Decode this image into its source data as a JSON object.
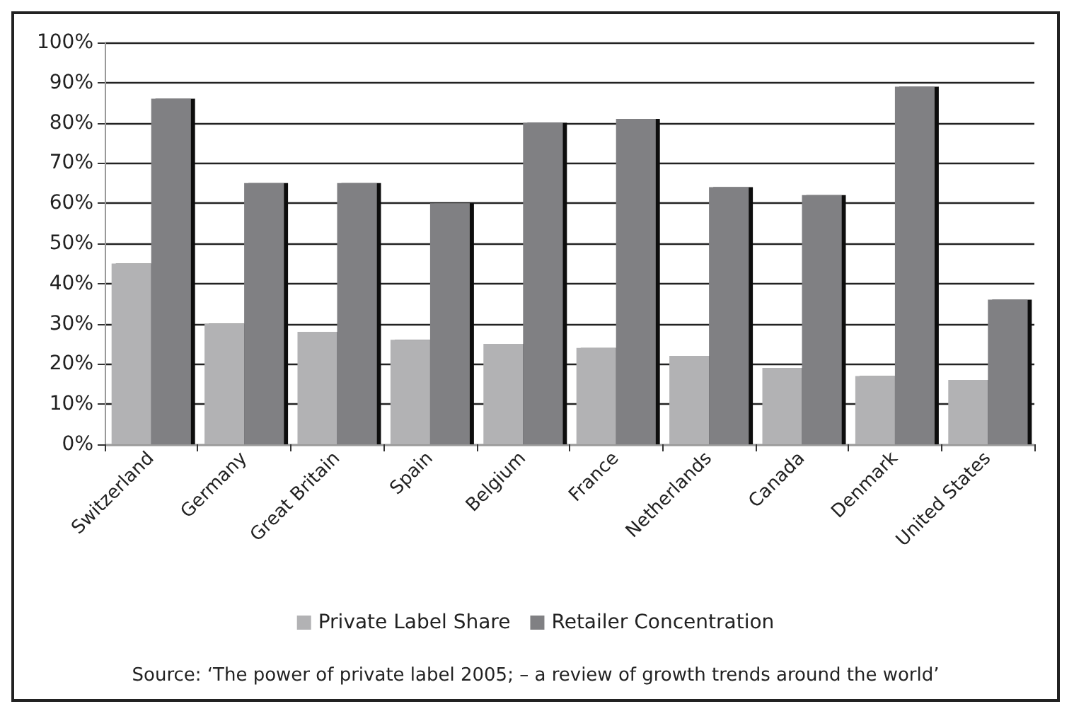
{
  "chart_data": {
    "type": "bar",
    "categories": [
      "Switzerland",
      "Germany",
      "Great Britain",
      "Spain",
      "Belgium",
      "France",
      "Netherlands",
      "Canada",
      "Denmark",
      "United States"
    ],
    "series": [
      {
        "name": "Private Label Share",
        "color": "#b2b2b4",
        "values": [
          45,
          30,
          28,
          26,
          25,
          24,
          22,
          19,
          17,
          16
        ]
      },
      {
        "name": "Retailer Concentration",
        "color": "#808083",
        "values": [
          86,
          65,
          65,
          60,
          80,
          81,
          64,
          62,
          89,
          36
        ]
      }
    ],
    "ylim": [
      0,
      100
    ],
    "yticks": [
      {
        "value": 0,
        "label": "0%"
      },
      {
        "value": 10,
        "label": "10%"
      },
      {
        "value": 20,
        "label": "20%"
      },
      {
        "value": 30,
        "label": "30%"
      },
      {
        "value": 40,
        "label": "40%"
      },
      {
        "value": 50,
        "label": "50%"
      },
      {
        "value": 60,
        "label": "60%"
      },
      {
        "value": 70,
        "label": "70%"
      },
      {
        "value": 80,
        "label": "80%"
      },
      {
        "value": 90,
        "label": "90%"
      },
      {
        "value": 100,
        "label": "100%"
      }
    ],
    "grid": "y",
    "legend": "bottom",
    "annotations": [
      "Source: ‘The power of private label 2005; – a review of growth trends around the world’"
    ]
  }
}
